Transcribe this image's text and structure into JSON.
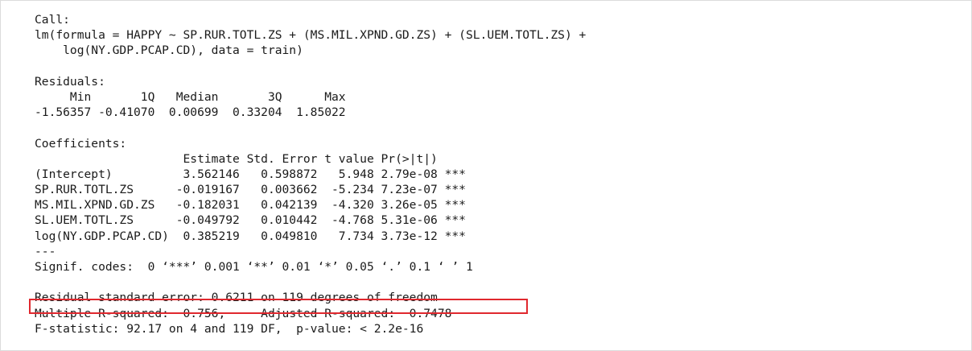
{
  "output": {
    "call_header": "Call:",
    "call_line1": "lm(formula = HAPPY ~ SP.RUR.TOTL.ZS + (MS.MIL.XPND.GD.ZS) + (SL.UEM.TOTL.ZS) +",
    "call_line2": "    log(NY.GDP.PCAP.CD), data = train)",
    "residuals_header": "Residuals:",
    "residuals_labels": "     Min       1Q   Median       3Q      Max ",
    "residuals_values": "-1.56357 -0.41070  0.00699  0.33204  1.85022 ",
    "coef_header": "Coefficients:",
    "coef_columns": "                     Estimate Std. Error t value Pr(>|t|)    ",
    "coef_rows": [
      "(Intercept)          3.562146   0.598872   5.948 2.79e-08 ***",
      "SP.RUR.TOTL.ZS      -0.019167   0.003662  -5.234 7.23e-07 ***",
      "MS.MIL.XPND.GD.ZS   -0.182031   0.042139  -4.320 3.26e-05 ***",
      "SL.UEM.TOTL.ZS      -0.049792   0.010442  -4.768 5.31e-06 ***",
      "log(NY.GDP.PCAP.CD)  0.385219   0.049810   7.734 3.73e-12 ***"
    ],
    "separator": "---",
    "signif_codes": "Signif. codes:  0 ‘***’ 0.001 ‘**’ 0.01 ‘*’ 0.05 ‘.’ 0.1 ‘ ’ 1",
    "residual_se": "Residual standard error: 0.6211 on 119 degrees of freedom",
    "r_squared": "Multiple R-squared:  0.756,\tAdjusted R-squared:  0.7478 ",
    "f_statistic": "F-statistic: 92.17 on 4 and 119 DF,  p-value: < 2.2e-16"
  },
  "colors": {
    "text": "#1a1a1a",
    "highlight_border": "#e0282e"
  }
}
